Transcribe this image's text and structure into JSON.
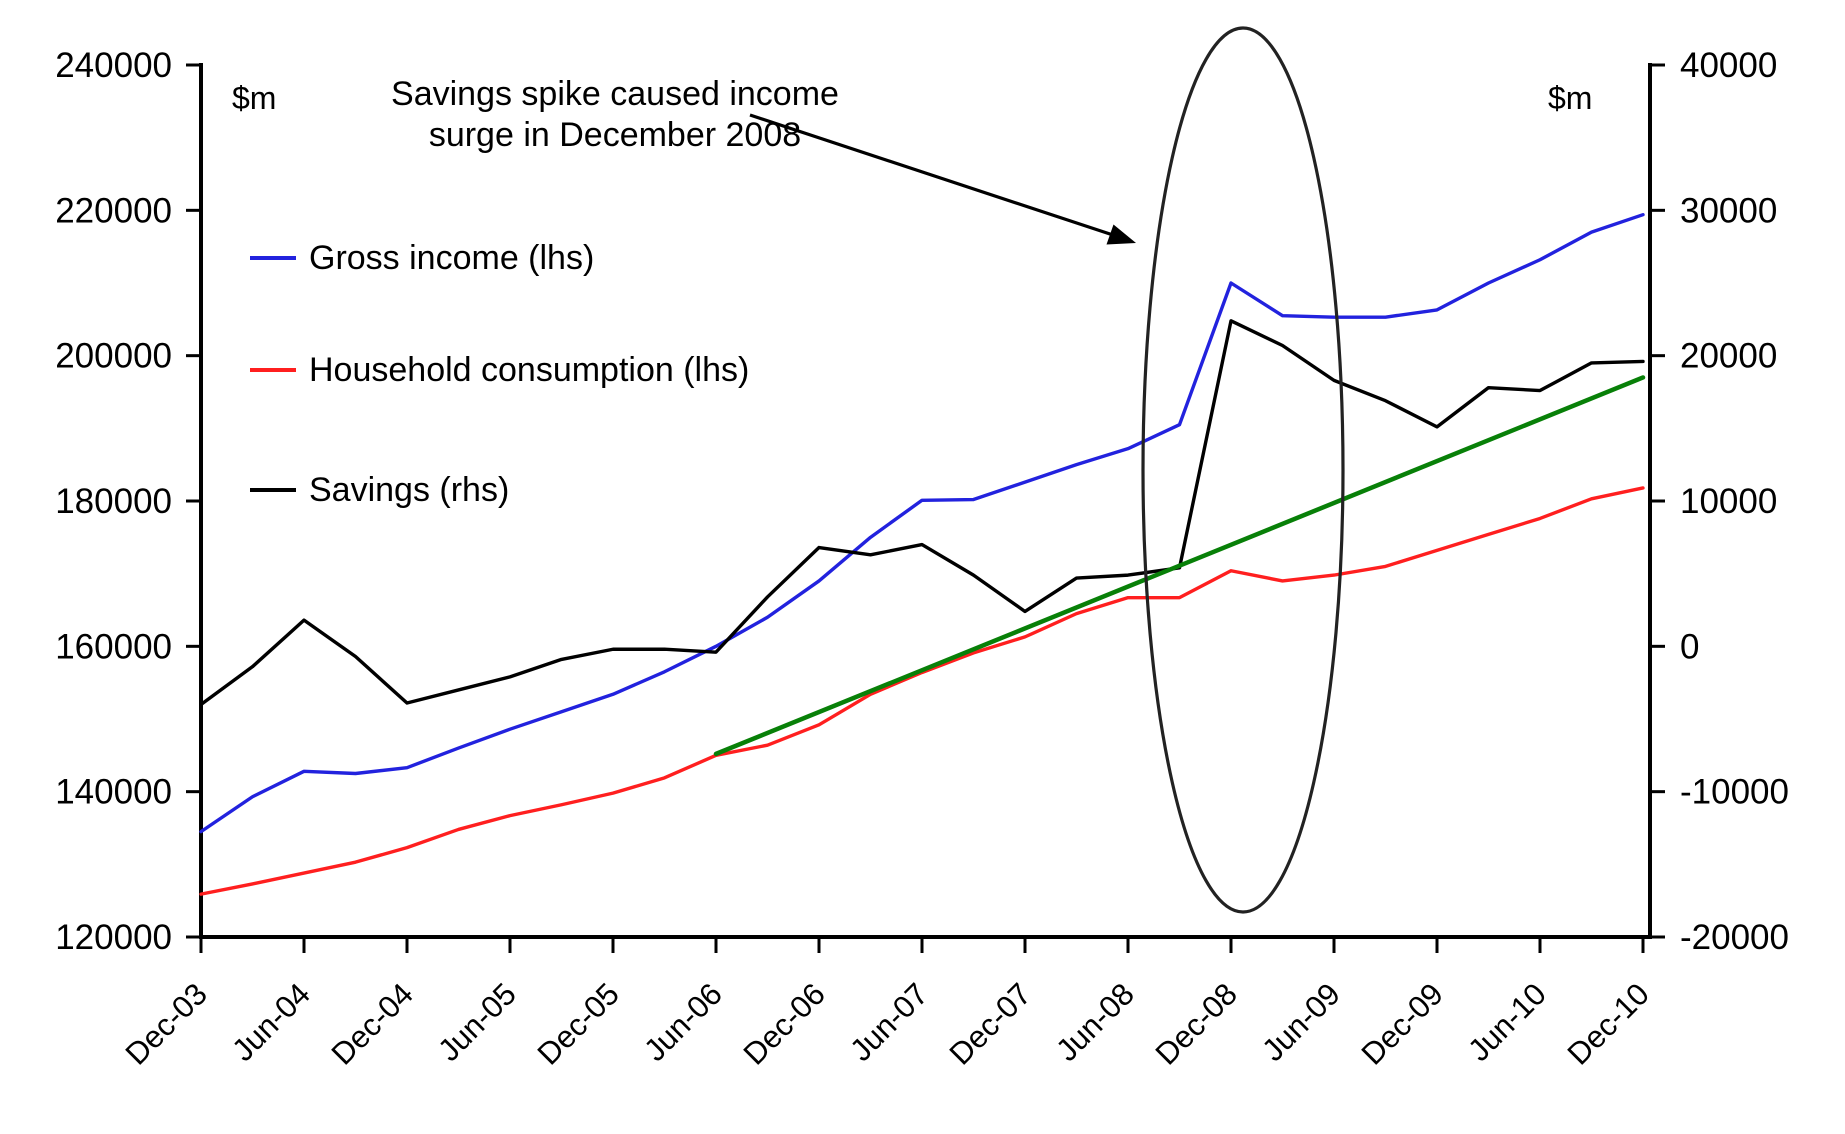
{
  "chart_data": {
    "type": "line",
    "title": "",
    "categories": [
      "Dec-03",
      "Mar-04",
      "Jun-04",
      "Sep-04",
      "Dec-04",
      "Mar-05",
      "Jun-05",
      "Sep-05",
      "Dec-05",
      "Mar-06",
      "Jun-06",
      "Sep-06",
      "Dec-06",
      "Mar-07",
      "Jun-07",
      "Sep-07",
      "Dec-07",
      "Mar-08",
      "Jun-08",
      "Sep-08",
      "Dec-08",
      "Mar-09",
      "Jun-09",
      "Sep-09",
      "Dec-09",
      "Mar-10",
      "Jun-10",
      "Sep-10",
      "Dec-10"
    ],
    "x_axis_tick_labels": [
      "Dec-03",
      "Jun-04",
      "Dec-04",
      "Jun-05",
      "Dec-05",
      "Jun-06",
      "Dec-06",
      "Jun-07",
      "Dec-07",
      "Jun-08",
      "Dec-08",
      "Jun-09",
      "Dec-09",
      "Jun-10",
      "Dec-10"
    ],
    "series": [
      {
        "name": "Gross income (lhs)",
        "axis": "left",
        "color": "#2222DE",
        "values": [
          134500,
          139300,
          142800,
          142500,
          143300,
          146000,
          148600,
          151000,
          153400,
          156500,
          160000,
          164000,
          169000,
          175000,
          180100,
          180200,
          182600,
          185000,
          187200,
          190500,
          210000,
          205500,
          205300,
          205300,
          206300,
          210000,
          213200,
          217000,
          219400
        ]
      },
      {
        "name": "Household consumption (lhs)",
        "axis": "left",
        "color": "#FF1F1F",
        "values": [
          125900,
          127300,
          128800,
          130300,
          132300,
          134800,
          136700,
          138200,
          139800,
          141900,
          145000,
          146400,
          149200,
          153400,
          156400,
          159100,
          161300,
          164500,
          166700,
          166700,
          170400,
          169000,
          169800,
          171000,
          173200,
          175400,
          177600,
          180300,
          181800
        ]
      },
      {
        "name": "Savings (rhs)",
        "axis": "right",
        "color": "#000000",
        "values": [
          -4000,
          -1400,
          1800,
          -700,
          -3900,
          -3000,
          -2100,
          -900,
          -200,
          -200,
          -400,
          3400,
          6800,
          6300,
          7000,
          4900,
          2400,
          4700,
          4900,
          5400,
          22400,
          20700,
          18300,
          16900,
          15100,
          17800,
          17600,
          19500,
          19600
        ]
      }
    ],
    "trend_line": {
      "name": "trend-line",
      "axis": "left",
      "color": "#088008",
      "start_category": "Jun-06",
      "start_value": 145200,
      "end_category": "Dec-10",
      "end_value": 197000
    },
    "axes": {
      "left": {
        "unit_label": "$m",
        "min": 120000,
        "max": 240000,
        "tick_step": 20000,
        "ticks": [
          "240000",
          "220000",
          "200000",
          "180000",
          "160000",
          "140000",
          "120000"
        ]
      },
      "right": {
        "unit_label": "$m",
        "min": -20000,
        "max": 40000,
        "tick_step": 10000,
        "ticks": [
          "40000",
          "30000",
          "20000",
          "10000",
          "0",
          "-10000",
          "-20000"
        ]
      }
    },
    "legend_position": "upper-left-inside",
    "grid": "off"
  },
  "legend": {
    "items": [
      {
        "label": "Gross income (lhs)",
        "color": "#2222DE"
      },
      {
        "label": "Household consumption (lhs)",
        "color": "#FF1F1F"
      },
      {
        "label": "Savings (rhs)",
        "color": "#000000"
      }
    ]
  },
  "annotation": {
    "line1": "Savings spike caused income",
    "line2": "surge in December 2008",
    "highlight": "ellipse around Dec-08 spike"
  }
}
